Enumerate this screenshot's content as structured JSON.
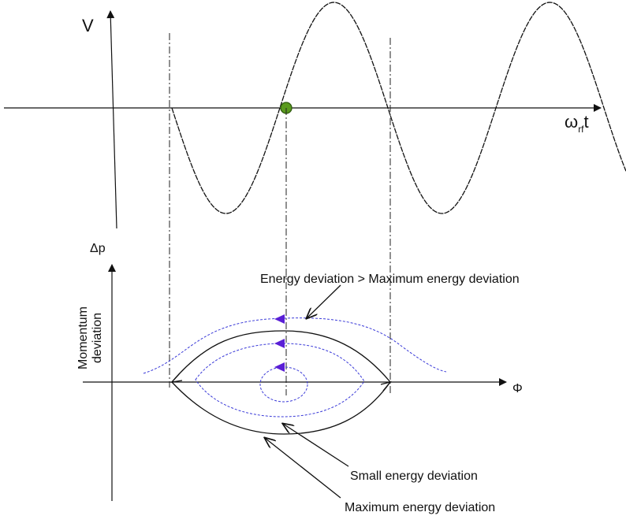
{
  "top_plot": {
    "y_axis_label": "V",
    "x_axis_label_main": "ω",
    "x_axis_label_sub": "rf",
    "x_axis_label_suffix": "t"
  },
  "bottom_plot": {
    "y_axis_symbol": "Δp",
    "y_axis_label_line1": "Momentum",
    "y_axis_label_line2": "deviation",
    "x_axis_label": "Φ"
  },
  "annotations": {
    "outer": "Energy deviation > Maximum energy deviation",
    "small": "Small energy deviation",
    "maximum": "Maximum energy deviation"
  },
  "colors": {
    "axis": "#111111",
    "curve": "#111111",
    "dashed_orbit": "#3a3ad8",
    "direction_arrow": "#5a1fd6",
    "synchronous_point": "#5a9a1e",
    "synchronous_point_edge": "#2f5a0e"
  }
}
